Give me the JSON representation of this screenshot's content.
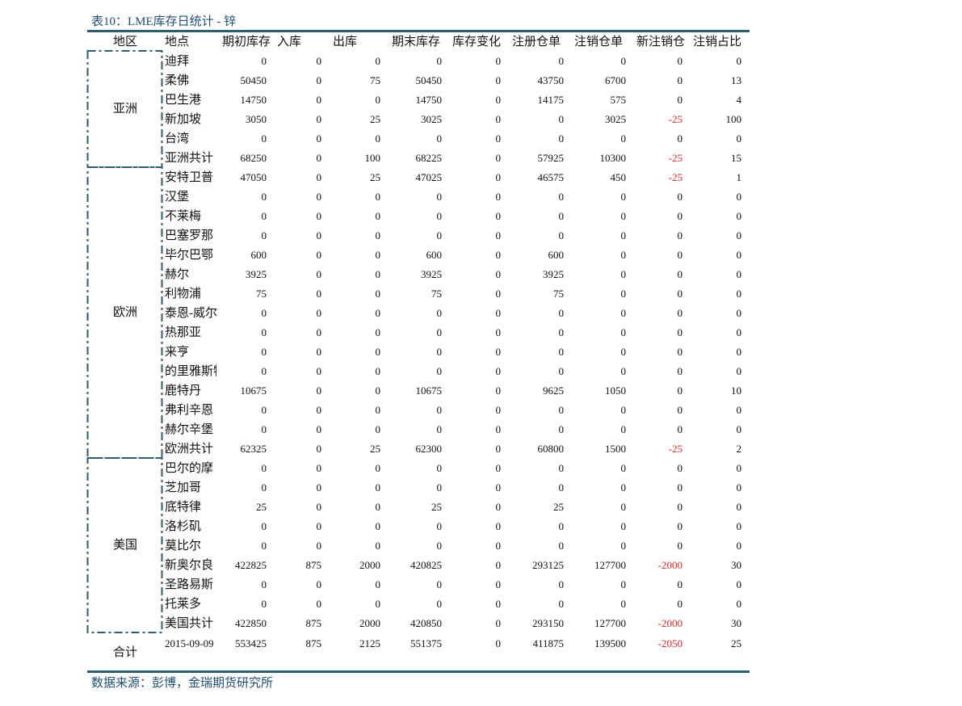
{
  "header": {
    "title": "表10：LME库存日统计 - 锌"
  },
  "table": {
    "columns": [
      "地区",
      "地点",
      "期初库存",
      "入库",
      "出库",
      "期末库存",
      "库存变化",
      "注册仓单",
      "注销仓单",
      "新注销仓",
      "注销占比"
    ],
    "groups": [
      {
        "region": "亚洲",
        "rows": [
          [
            "迪拜",
            0,
            0,
            0,
            0,
            0,
            0,
            0,
            0,
            0
          ],
          [
            "柔佛",
            50450,
            0,
            75,
            50450,
            0,
            43750,
            6700,
            0,
            13
          ],
          [
            "巴生港",
            14750,
            0,
            0,
            14750,
            0,
            14175,
            575,
            0,
            4
          ],
          [
            "新加坡",
            3050,
            0,
            25,
            3025,
            0,
            0,
            3025,
            -25,
            100
          ],
          [
            "台湾",
            0,
            0,
            0,
            0,
            0,
            0,
            0,
            0,
            0
          ],
          [
            "亚洲共计",
            68250,
            0,
            100,
            68225,
            0,
            57925,
            10300,
            -25,
            15
          ]
        ]
      },
      {
        "region": "欧洲",
        "rows": [
          [
            "安特卫普",
            47050,
            0,
            25,
            47025,
            0,
            46575,
            450,
            -25,
            1
          ],
          [
            "汉堡",
            0,
            0,
            0,
            0,
            0,
            0,
            0,
            0,
            0
          ],
          [
            "不莱梅",
            0,
            0,
            0,
            0,
            0,
            0,
            0,
            0,
            0
          ],
          [
            "巴塞罗那",
            0,
            0,
            0,
            0,
            0,
            0,
            0,
            0,
            0
          ],
          [
            "毕尔巴鄂",
            600,
            0,
            0,
            600,
            0,
            600,
            0,
            0,
            0
          ],
          [
            "赫尔",
            3925,
            0,
            0,
            3925,
            0,
            3925,
            0,
            0,
            0
          ],
          [
            "利物浦",
            75,
            0,
            0,
            75,
            0,
            75,
            0,
            0,
            0
          ],
          [
            "泰恩-威尔",
            0,
            0,
            0,
            0,
            0,
            0,
            0,
            0,
            0
          ],
          [
            "热那亚",
            0,
            0,
            0,
            0,
            0,
            0,
            0,
            0,
            0
          ],
          [
            "来亨",
            0,
            0,
            0,
            0,
            0,
            0,
            0,
            0,
            0
          ],
          [
            "的里雅斯特",
            0,
            0,
            0,
            0,
            0,
            0,
            0,
            0,
            0
          ],
          [
            "鹿特丹",
            10675,
            0,
            0,
            10675,
            0,
            9625,
            1050,
            0,
            10
          ],
          [
            "弗利辛恩",
            0,
            0,
            0,
            0,
            0,
            0,
            0,
            0,
            0
          ],
          [
            "赫尔辛堡",
            0,
            0,
            0,
            0,
            0,
            0,
            0,
            0,
            0
          ],
          [
            "欧洲共计",
            62325,
            0,
            25,
            62300,
            0,
            60800,
            1500,
            -25,
            2
          ]
        ]
      },
      {
        "region": "美国",
        "rows": [
          [
            "巴尔的摩",
            0,
            0,
            0,
            0,
            0,
            0,
            0,
            0,
            0
          ],
          [
            "芝加哥",
            0,
            0,
            0,
            0,
            0,
            0,
            0,
            0,
            0
          ],
          [
            "底特律",
            25,
            0,
            0,
            25,
            0,
            25,
            0,
            0,
            0
          ],
          [
            "洛杉矶",
            0,
            0,
            0,
            0,
            0,
            0,
            0,
            0,
            0
          ],
          [
            "莫比尔",
            0,
            0,
            0,
            0,
            0,
            0,
            0,
            0,
            0
          ],
          [
            "新奥尔良",
            422825,
            875,
            2000,
            420825,
            0,
            293125,
            127700,
            -2000,
            30
          ],
          [
            "圣路易斯",
            0,
            0,
            0,
            0,
            0,
            0,
            0,
            0,
            0
          ],
          [
            "托莱多",
            0,
            0,
            0,
            0,
            0,
            0,
            0,
            0,
            0
          ],
          [
            "美国共计",
            422850,
            875,
            2000,
            420850,
            0,
            293150,
            127700,
            -2000,
            30
          ]
        ]
      }
    ],
    "total": {
      "label": "合计",
      "date": "2015-09-09",
      "values": [
        553425,
        875,
        2125,
        551375,
        0,
        411875,
        139500,
        -2050,
        25
      ]
    }
  },
  "source": "数据来源：彭博，金瑞期货研究所"
}
